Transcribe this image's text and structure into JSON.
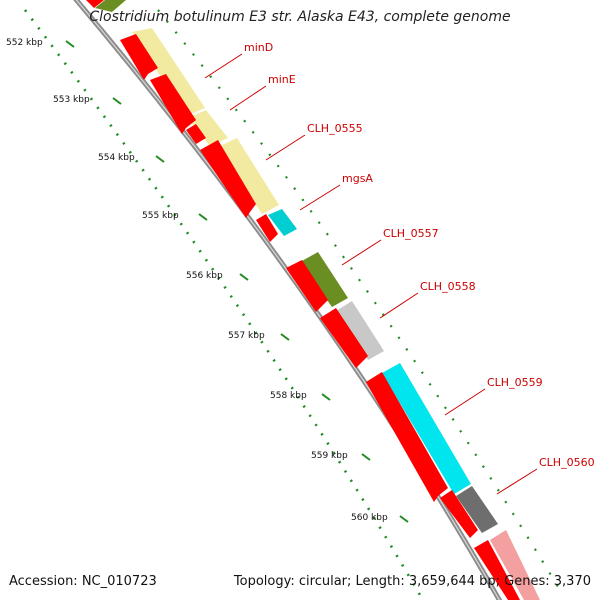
{
  "title": "Clostridium botulinum E3 str. Alaska E43, complete genome",
  "footer": {
    "accession": "Accession: NC_010723",
    "topology": "Topology: circular; Length: 3,659,644 bp; Genes: 3,370"
  },
  "ruler_labels": [
    "552 kbp",
    "553 kbp",
    "554 kbp",
    "555 kbp",
    "556 kbp",
    "557 kbp",
    "558 kbp",
    "559 kbp",
    "560 kbp"
  ],
  "colors": {
    "cds": "#ff0000",
    "backbone": "#8c8c8c",
    "label": "#cc0000",
    "ruler": "#228b22",
    "pale_yellow": "#f2eaa0",
    "olive": "#6b8e23",
    "cyan": "#00e5ee",
    "light_gray": "#c8c8c8",
    "dark_gray": "#6e6e6e",
    "pink": "#f4a0a0"
  },
  "genes": [
    {
      "label": "minD"
    },
    {
      "label": "minE"
    },
    {
      "label": "CLH_0555"
    },
    {
      "label": "mgsA"
    },
    {
      "label": "CLH_0557"
    },
    {
      "label": "CLH_0558"
    },
    {
      "label": "CLH_0559"
    },
    {
      "label": "CLH_0560"
    }
  ]
}
